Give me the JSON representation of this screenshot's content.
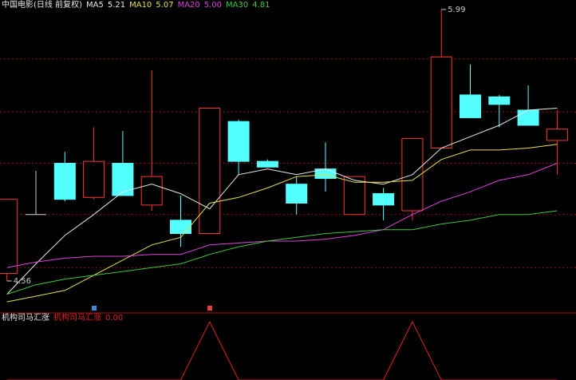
{
  "chart_data": [
    {
      "type": "candlestick",
      "title": "中国电影(日线 前复权)",
      "open": [
        4.6,
        4.91,
        5.18,
        5.0,
        5.18,
        4.96,
        4.88,
        4.81,
        5.4,
        5.19,
        5.07,
        5.15,
        4.91,
        5.02,
        4.93,
        5.26,
        5.54,
        5.53,
        5.46,
        5.3
      ],
      "high": [
        4.99,
        5.14,
        5.24,
        5.37,
        5.35,
        5.67,
        5.01,
        5.47,
        5.41,
        5.2,
        5.11,
        5.29,
        5.11,
        5.05,
        5.31,
        5.99,
        5.7,
        5.54,
        5.59,
        5.46
      ],
      "low": [
        4.56,
        4.91,
        4.98,
        4.99,
        5.01,
        4.93,
        4.74,
        4.81,
        5.12,
        5.16,
        4.91,
        5.03,
        4.91,
        4.88,
        4.88,
        5.26,
        5.42,
        5.37,
        5.38,
        5.12
      ],
      "close": [
        4.99,
        4.91,
        4.99,
        5.19,
        5.01,
        5.11,
        4.81,
        5.47,
        5.19,
        5.16,
        4.97,
        5.1,
        5.11,
        4.96,
        5.31,
        5.74,
        5.42,
        5.49,
        5.38,
        5.36
      ],
      "up_color": "#ff3232",
      "down_color": "#54ffff",
      "flat_color": "#d0d0d0",
      "high_label": "5.99",
      "low_label": "4.56",
      "series": [
        {
          "name": "MA5",
          "color": "#e8e8e8",
          "value_label": "5.21",
          "values": [
            4.49,
            4.65,
            4.8,
            4.91,
            5.03,
            5.07,
            5.02,
            4.94,
            5.12,
            5.15,
            5.12,
            5.15,
            5.09,
            5.07,
            5.12,
            5.26,
            5.32,
            5.38,
            5.46,
            5.47
          ]
        },
        {
          "name": "MA10",
          "color": "#e8e04a",
          "value_label": "5.07",
          "values": [
            4.45,
            4.48,
            4.51,
            4.59,
            4.67,
            4.75,
            4.79,
            4.97,
            5.0,
            5.05,
            5.11,
            5.12,
            5.08,
            5.08,
            5.09,
            5.2,
            5.25,
            5.25,
            5.26,
            5.28
          ]
        },
        {
          "name": "MA20",
          "color": "#e040e0",
          "value_label": "5.00",
          "values": [
            4.63,
            4.66,
            4.68,
            4.69,
            4.69,
            4.7,
            4.7,
            4.75,
            4.76,
            4.77,
            4.77,
            4.78,
            4.8,
            4.83,
            4.91,
            4.98,
            5.03,
            5.09,
            5.12,
            5.18
          ]
        },
        {
          "name": "MA30",
          "color": "#3cc83c",
          "value_label": "4.81",
          "values": [
            4.49,
            4.54,
            4.57,
            4.59,
            4.61,
            4.63,
            4.65,
            4.7,
            4.74,
            4.77,
            4.79,
            4.81,
            4.82,
            4.83,
            4.83,
            4.86,
            4.88,
            4.91,
            4.91,
            4.93
          ]
        }
      ],
      "ylim": [
        4.4,
        6.04
      ],
      "yticks": [
        4.63,
        4.91,
        5.18,
        5.45,
        5.73
      ],
      "grid": true,
      "grid_color": "#8a1010"
    },
    {
      "type": "line",
      "title": "机构司马汇涨",
      "series": [
        {
          "name": "机构司马汇涨",
          "color": "#e02020",
          "value_label": "0.00",
          "values": [
            0,
            0,
            0,
            0,
            0,
            0,
            0,
            1,
            0,
            0,
            0,
            0,
            0,
            0,
            1,
            0,
            0,
            0,
            0,
            0
          ]
        }
      ],
      "ylim": [
        0,
        1
      ]
    }
  ]
}
